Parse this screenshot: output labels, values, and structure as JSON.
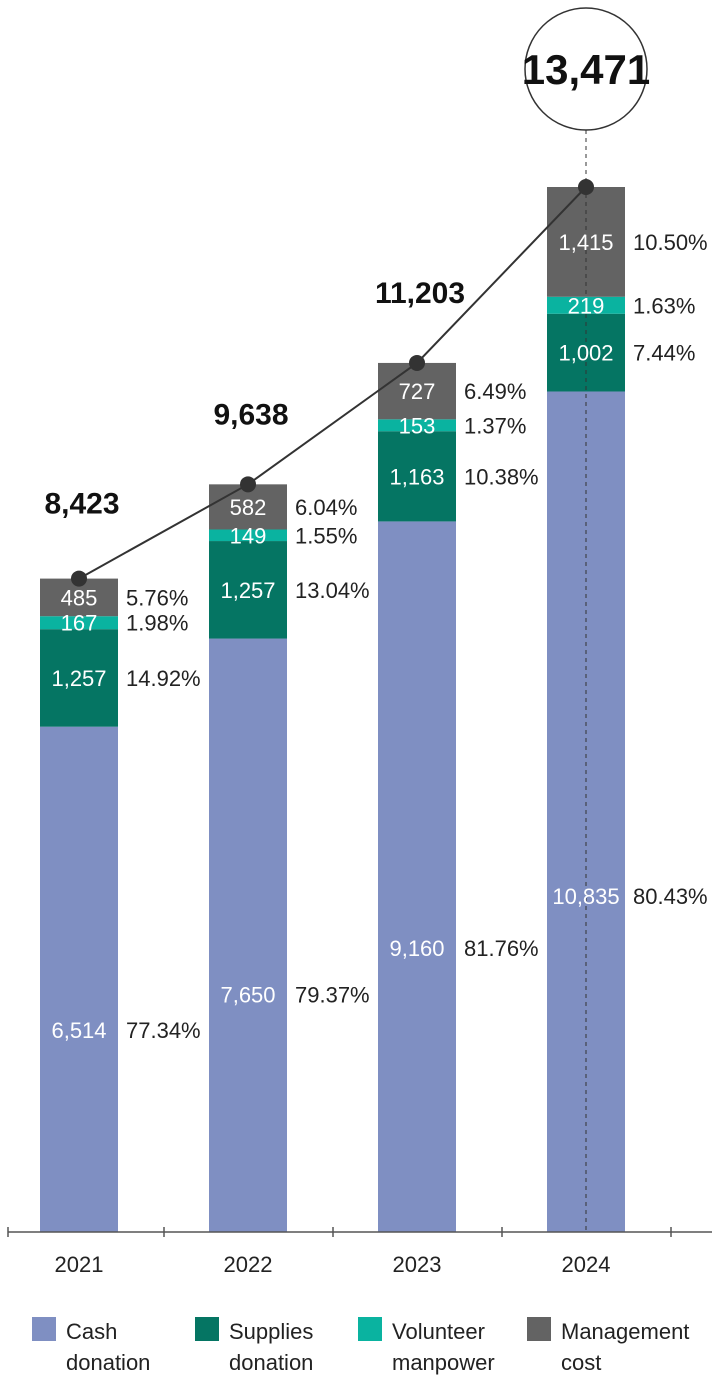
{
  "chart_data": {
    "type": "bar",
    "stacked": true,
    "categories": [
      "2021",
      "2022",
      "2023",
      "2024"
    ],
    "totals": [
      "8,423",
      "9,638",
      "11,203",
      "13,471"
    ],
    "total_values": [
      8423,
      9638,
      11203,
      13471
    ],
    "series": [
      {
        "name": "Cash donation",
        "color": "#7f8fc2",
        "values": [
          6514,
          7650,
          9160,
          10835
        ],
        "labels": [
          "6,514",
          "7,650",
          "9,160",
          "10,835"
        ],
        "percents": [
          "77.34%",
          "79.37%",
          "81.76%",
          "80.43%"
        ]
      },
      {
        "name": "Supplies donation",
        "color": "#057563",
        "values": [
          1257,
          1257,
          1163,
          1002
        ],
        "labels": [
          "1,257",
          "1,257",
          "1,163",
          "1,002"
        ],
        "percents": [
          "14.92%",
          "13.04%",
          "10.38%",
          "7.44%"
        ]
      },
      {
        "name": "Volunteer manpower",
        "color": "#0ab3a0",
        "values": [
          167,
          149,
          153,
          219
        ],
        "labels": [
          "167",
          "149",
          "153",
          "219"
        ],
        "percents": [
          "1.98%",
          "1.55%",
          "1.37%",
          "1.63%"
        ]
      },
      {
        "name": "Management cost",
        "color": "#636363",
        "values": [
          485,
          582,
          727,
          1415
        ],
        "labels": [
          "485",
          "582",
          "727",
          "1,415"
        ],
        "percents": [
          "5.76%",
          "6.04%",
          "6.49%",
          "10.50%"
        ]
      }
    ],
    "legend": [
      {
        "line1": "Cash",
        "line2": "donation"
      },
      {
        "line1": "Supplies",
        "line2": "donation"
      },
      {
        "line1": "Volunteer",
        "line2": "manpower"
      },
      {
        "line1": "Management",
        "line2": "cost"
      }
    ],
    "legend_position": "bottom",
    "ylim": [
      0,
      13471
    ],
    "grid": false
  }
}
